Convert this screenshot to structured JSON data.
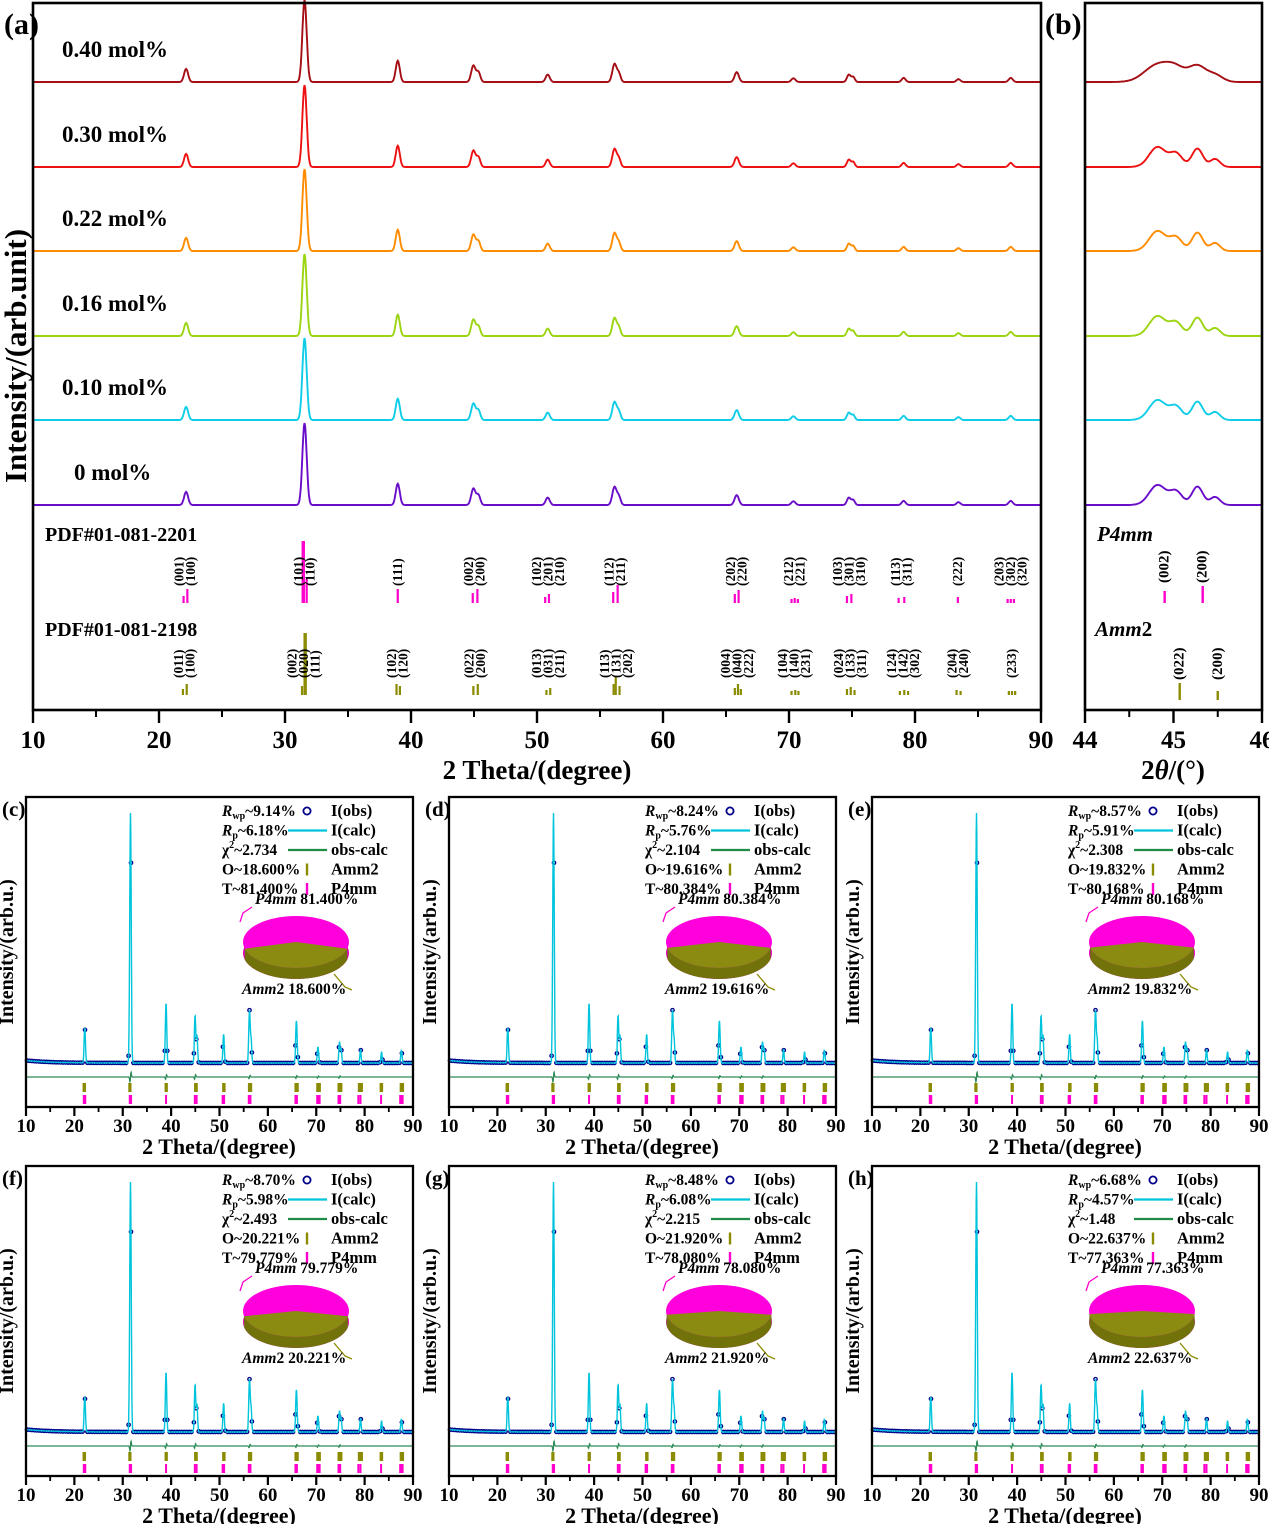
{
  "colors": {
    "magenta": "#FF00CC",
    "pie_magenta": "#FF00DC",
    "pie_magenta_side": "#E000BE",
    "olive": "#8B8B00",
    "pie_olive": "#8B8B12",
    "pie_olive_side": "#72720A",
    "navy": "#00008B",
    "cyan": "#00C4DC",
    "green": "#1E8C45",
    "diff_green": "#2E8B57",
    "black": "#000000"
  },
  "panel_a": {
    "tag": "(a)",
    "ylabel": "Intensity/(arb.unit)",
    "xlabel": "2 Theta/(degree)",
    "pdf_p4mm_name": "PDF#01-081-2201",
    "pdf_amm2_name": "PDF#01-081-2198"
  },
  "panel_b": {
    "tag": "(b)",
    "p4mm": "P4mm",
    "amm2_italic": "Amm",
    "amm2_suffix": "2",
    "xlabel_pre": "2",
    "xlabel_theta": "θ",
    "xlabel_post": "/(°)"
  },
  "bottom": {
    "ylabel": "Intensity/(arb.u.)",
    "xlabel": "2 Theta/(degree)"
  },
  "legend": {
    "items": [
      {
        "label": "I(obs)",
        "color": "#00008B",
        "marker": "circle"
      },
      {
        "label": "I(calc)",
        "color": "#00C4DC",
        "marker": "line"
      },
      {
        "label": "obs-calc",
        "color": "#1E8C45",
        "marker": "line"
      },
      {
        "label": "Amm2",
        "color": "#8B8B00",
        "marker": "tick"
      },
      {
        "label": "P4mm",
        "color": "#FF00CC",
        "marker": "tick"
      }
    ]
  },
  "panels": [
    {
      "tag": "(c)",
      "stats": {
        "rwp": "~9.14%",
        "rp": "~6.18%",
        "chi2": "~2.734",
        "o": "O~18.600%",
        "t": "T~81.400%"
      },
      "pie": {
        "p4mm_label": "P4mm",
        "p4mm_value": "81.400%",
        "amm2_label": "Amm2",
        "amm2_value": "18.600%",
        "p4mm_pct": 81.4,
        "amm2_pct": 18.6
      }
    },
    {
      "tag": "(d)",
      "stats": {
        "rwp": "~8.24%",
        "rp": "~5.76%",
        "chi2": "~2.104",
        "o": "O~19.616%",
        "t": "T~80.384%"
      },
      "pie": {
        "p4mm_label": "P4mm",
        "p4mm_value": "80.384%",
        "amm2_label": "Amm2",
        "amm2_value": "19.616%",
        "p4mm_pct": 80.384,
        "amm2_pct": 19.616
      }
    },
    {
      "tag": "(e)",
      "stats": {
        "rwp": "~8.57%",
        "rp": "~5.91%",
        "chi2": "~2.308",
        "o": "O~19.832%",
        "t": "T~80.168%"
      },
      "pie": {
        "p4mm_label": "P4mm",
        "p4mm_value": "80.168%",
        "amm2_label": "Amm2",
        "amm2_value": "19.832%",
        "p4mm_pct": 80.168,
        "amm2_pct": 19.832
      }
    },
    {
      "tag": "(f)",
      "stats": {
        "rwp": "~8.70%",
        "rp": "~5.98%",
        "chi2": "~2.493",
        "o": "O~20.221%",
        "t": "T~79.779%"
      },
      "pie": {
        "p4mm_label": "P4mm",
        "p4mm_value": "79.779%",
        "amm2_label": "Amm2",
        "amm2_value": "20.221%",
        "p4mm_pct": 79.779,
        "amm2_pct": 20.221
      }
    },
    {
      "tag": "(g)",
      "stats": {
        "rwp": "~8.48%",
        "rp": "~6.08%",
        "chi2": "~2.215",
        "o": "O~21.920%",
        "t": "T~78.080%"
      },
      "pie": {
        "p4mm_label": "P4mm",
        "p4mm_value": "78.080%",
        "amm2_label": "Amm2",
        "amm2_value": "21.920%",
        "p4mm_pct": 78.08,
        "amm2_pct": 21.92
      }
    },
    {
      "tag": "(h)",
      "stats": {
        "rwp": "~6.68%",
        "rp": "~4.57%",
        "chi2": "~1.48",
        "o": "O~22.637%",
        "t": "T~77.363%"
      },
      "pie": {
        "p4mm_label": "P4mm",
        "p4mm_value": "77.363%",
        "amm2_label": "Amm2",
        "amm2_value": "22.637%",
        "p4mm_pct": 77.363,
        "amm2_pct": 22.637
      }
    }
  ],
  "chart_data": {
    "type": "line",
    "panel_a": {
      "x_range": [
        10,
        90
      ],
      "x_ticks": [
        10,
        20,
        30,
        40,
        50,
        60,
        70,
        80,
        90
      ],
      "x_minor": [
        15,
        25,
        35,
        45,
        55,
        65,
        75,
        85
      ],
      "series": [
        {
          "name": "0.40 mol%",
          "color": "#A40E14"
        },
        {
          "name": "0.30 mol%",
          "color": "#EE1111"
        },
        {
          "name": "0.22 mol%",
          "color": "#FF8C00"
        },
        {
          "name": "0.16 mol%",
          "color": "#9BD411"
        },
        {
          "name": "0.10 mol%",
          "color": "#0FCDE7"
        },
        {
          "name": "0 mol%",
          "color": "#6A0DC9"
        }
      ],
      "peaks": [
        [
          22.15,
          0.16,
          0.16
        ],
        [
          31.55,
          1.0,
          0.17
        ],
        [
          38.95,
          0.26,
          0.16
        ],
        [
          44.95,
          0.2,
          0.17
        ],
        [
          45.35,
          0.12,
          0.15
        ],
        [
          50.85,
          0.09,
          0.16
        ],
        [
          56.15,
          0.22,
          0.17
        ],
        [
          56.5,
          0.1,
          0.14
        ],
        [
          65.85,
          0.12,
          0.17
        ],
        [
          70.35,
          0.045,
          0.16
        ],
        [
          74.75,
          0.09,
          0.15
        ],
        [
          75.1,
          0.06,
          0.13
        ],
        [
          79.1,
          0.05,
          0.15
        ],
        [
          83.45,
          0.035,
          0.15
        ],
        [
          87.6,
          0.05,
          0.16
        ]
      ]
    },
    "panel_b": {
      "x_range": [
        44,
        46
      ],
      "x_ticks": [
        44,
        45,
        46
      ],
      "x_minor": [
        44.5,
        45.5
      ],
      "peaks": [
        [
          44.82,
          0.5,
          0.095
        ],
        [
          45.03,
          0.33,
          0.07
        ],
        [
          45.27,
          0.46,
          0.062
        ],
        [
          45.47,
          0.2,
          0.055
        ]
      ]
    },
    "pdf_p4mm": {
      "name": "PDF#01-081-2201",
      "space_group": "P4mm",
      "ticks": [
        [
          21.95,
          7
        ],
        [
          22.25,
          14
        ],
        [
          31.45,
          62
        ],
        [
          31.72,
          24
        ],
        [
          38.95,
          14
        ],
        [
          44.9,
          10
        ],
        [
          45.27,
          14
        ],
        [
          50.65,
          6
        ],
        [
          50.95,
          9
        ],
        [
          56.05,
          11
        ],
        [
          56.4,
          18
        ],
        [
          65.7,
          9
        ],
        [
          66.0,
          13
        ],
        [
          70.2,
          4
        ],
        [
          70.45,
          5
        ],
        [
          70.7,
          4
        ],
        [
          74.6,
          7
        ],
        [
          74.95,
          9
        ],
        [
          78.7,
          5
        ],
        [
          79.15,
          6
        ],
        [
          83.4,
          6
        ],
        [
          87.35,
          4
        ],
        [
          87.6,
          4
        ],
        [
          87.85,
          4
        ]
      ],
      "label_groups": [
        {
          "x": 22.1,
          "labels": [
            "(001)",
            "(100)"
          ]
        },
        {
          "x": 31.55,
          "labels": [
            "(101)",
            "(110)"
          ]
        },
        {
          "x": 38.95,
          "labels": [
            "(111)"
          ]
        },
        {
          "x": 45.05,
          "labels": [
            "(002)",
            "(200)"
          ]
        },
        {
          "x": 50.9,
          "labels": [
            "(102)",
            "(201)",
            "(210)"
          ]
        },
        {
          "x": 56.2,
          "labels": [
            "(112)",
            "(211)"
          ]
        },
        {
          "x": 65.85,
          "labels": [
            "(202)",
            "(220)"
          ]
        },
        {
          "x": 70.45,
          "labels": [
            "(212)",
            "(221)"
          ]
        },
        {
          "x": 74.8,
          "labels": [
            "(103)",
            "(301)",
            "(310)"
          ]
        },
        {
          "x": 78.95,
          "labels": [
            "(113)",
            "(311)"
          ]
        },
        {
          "x": 83.4,
          "labels": [
            "(222)"
          ]
        },
        {
          "x": 87.6,
          "labels": [
            "(203)",
            "(302)",
            "(320)"
          ]
        }
      ]
    },
    "pdf_amm2": {
      "name": "PDF#01-081-2198",
      "space_group": "Amm2",
      "ticks": [
        [
          21.9,
          6
        ],
        [
          22.2,
          11
        ],
        [
          31.35,
          9
        ],
        [
          31.6,
          62
        ],
        [
          38.85,
          11
        ],
        [
          39.12,
          9
        ],
        [
          44.95,
          9
        ],
        [
          45.3,
          11
        ],
        [
          50.75,
          5
        ],
        [
          51.05,
          7
        ],
        [
          56.08,
          11
        ],
        [
          56.25,
          18
        ],
        [
          56.55,
          9
        ],
        [
          65.7,
          7
        ],
        [
          65.95,
          11
        ],
        [
          66.18,
          6
        ],
        [
          70.2,
          4
        ],
        [
          70.5,
          5
        ],
        [
          70.75,
          4
        ],
        [
          74.6,
          6
        ],
        [
          74.9,
          8
        ],
        [
          75.2,
          5
        ],
        [
          78.8,
          4
        ],
        [
          79.15,
          5
        ],
        [
          79.45,
          4
        ],
        [
          83.3,
          5
        ],
        [
          83.62,
          4
        ],
        [
          87.45,
          4
        ],
        [
          87.7,
          4
        ],
        [
          87.95,
          4
        ]
      ],
      "label_groups": [
        {
          "x": 22.05,
          "labels": [
            "(011)",
            "(100)"
          ]
        },
        {
          "x": 31.5,
          "labels": [
            "(002)",
            "(020)",
            "(111)"
          ]
        },
        {
          "x": 38.95,
          "labels": [
            "(102)",
            "(120)"
          ]
        },
        {
          "x": 45.1,
          "labels": [
            "(022)",
            "(200)"
          ]
        },
        {
          "x": 50.9,
          "labels": [
            "(013)",
            "(031)",
            "(211)"
          ]
        },
        {
          "x": 56.3,
          "labels": [
            "(113)",
            "(131)",
            "(202)"
          ]
        },
        {
          "x": 65.9,
          "labels": [
            "(004)",
            "(040)",
            "(222)"
          ]
        },
        {
          "x": 70.45,
          "labels": [
            "(104)",
            "(140)",
            "(231)"
          ]
        },
        {
          "x": 74.9,
          "labels": [
            "(024)",
            "(133)",
            "(311)"
          ]
        },
        {
          "x": 79.1,
          "labels": [
            "(124)",
            "(142)",
            "(302)"
          ]
        },
        {
          "x": 83.45,
          "labels": [
            "(204)",
            "(240)"
          ]
        },
        {
          "x": 87.7,
          "labels": [
            "(233)"
          ]
        }
      ]
    },
    "panel_b_refs": {
      "p4mm": {
        "phase": "P4mm",
        "marks": [
          {
            "x": 44.9,
            "h": 12,
            "label": "(002)"
          },
          {
            "x": 45.33,
            "h": 17,
            "label": "(200)"
          }
        ]
      },
      "amm2": {
        "phase": "Amm2",
        "marks": [
          {
            "x": 45.07,
            "h": 17,
            "label": "(022)"
          },
          {
            "x": 45.5,
            "h": 9,
            "label": "(200)"
          }
        ]
      }
    },
    "bottom_panels": {
      "x_range": [
        10,
        90
      ],
      "x_ticks": [
        10,
        20,
        30,
        40,
        50,
        60,
        70,
        80,
        90
      ],
      "x_minor": [
        15,
        25,
        35,
        45,
        55,
        65,
        75,
        85
      ],
      "peaks": [
        [
          22.15,
          0.14,
          0.14
        ],
        [
          31.6,
          1.0,
          0.15
        ],
        [
          38.95,
          0.24,
          0.14
        ],
        [
          44.95,
          0.19,
          0.14
        ],
        [
          45.35,
          0.11,
          0.13
        ],
        [
          50.85,
          0.115,
          0.14
        ],
        [
          56.2,
          0.21,
          0.15
        ],
        [
          56.55,
          0.09,
          0.12
        ],
        [
          65.9,
          0.17,
          0.15
        ],
        [
          70.35,
          0.065,
          0.14
        ],
        [
          74.8,
          0.085,
          0.13
        ],
        [
          75.15,
          0.055,
          0.12
        ],
        [
          79.15,
          0.055,
          0.13
        ],
        [
          83.5,
          0.045,
          0.13
        ],
        [
          87.6,
          0.05,
          0.14
        ]
      ],
      "diff_spikes": [
        [
          31.6,
          9
        ],
        [
          38.95,
          4
        ],
        [
          44.95,
          4
        ],
        [
          56.2,
          3
        ],
        [
          65.9,
          2.5
        ],
        [
          70.35,
          2
        ],
        [
          74.8,
          2
        ]
      ]
    }
  }
}
